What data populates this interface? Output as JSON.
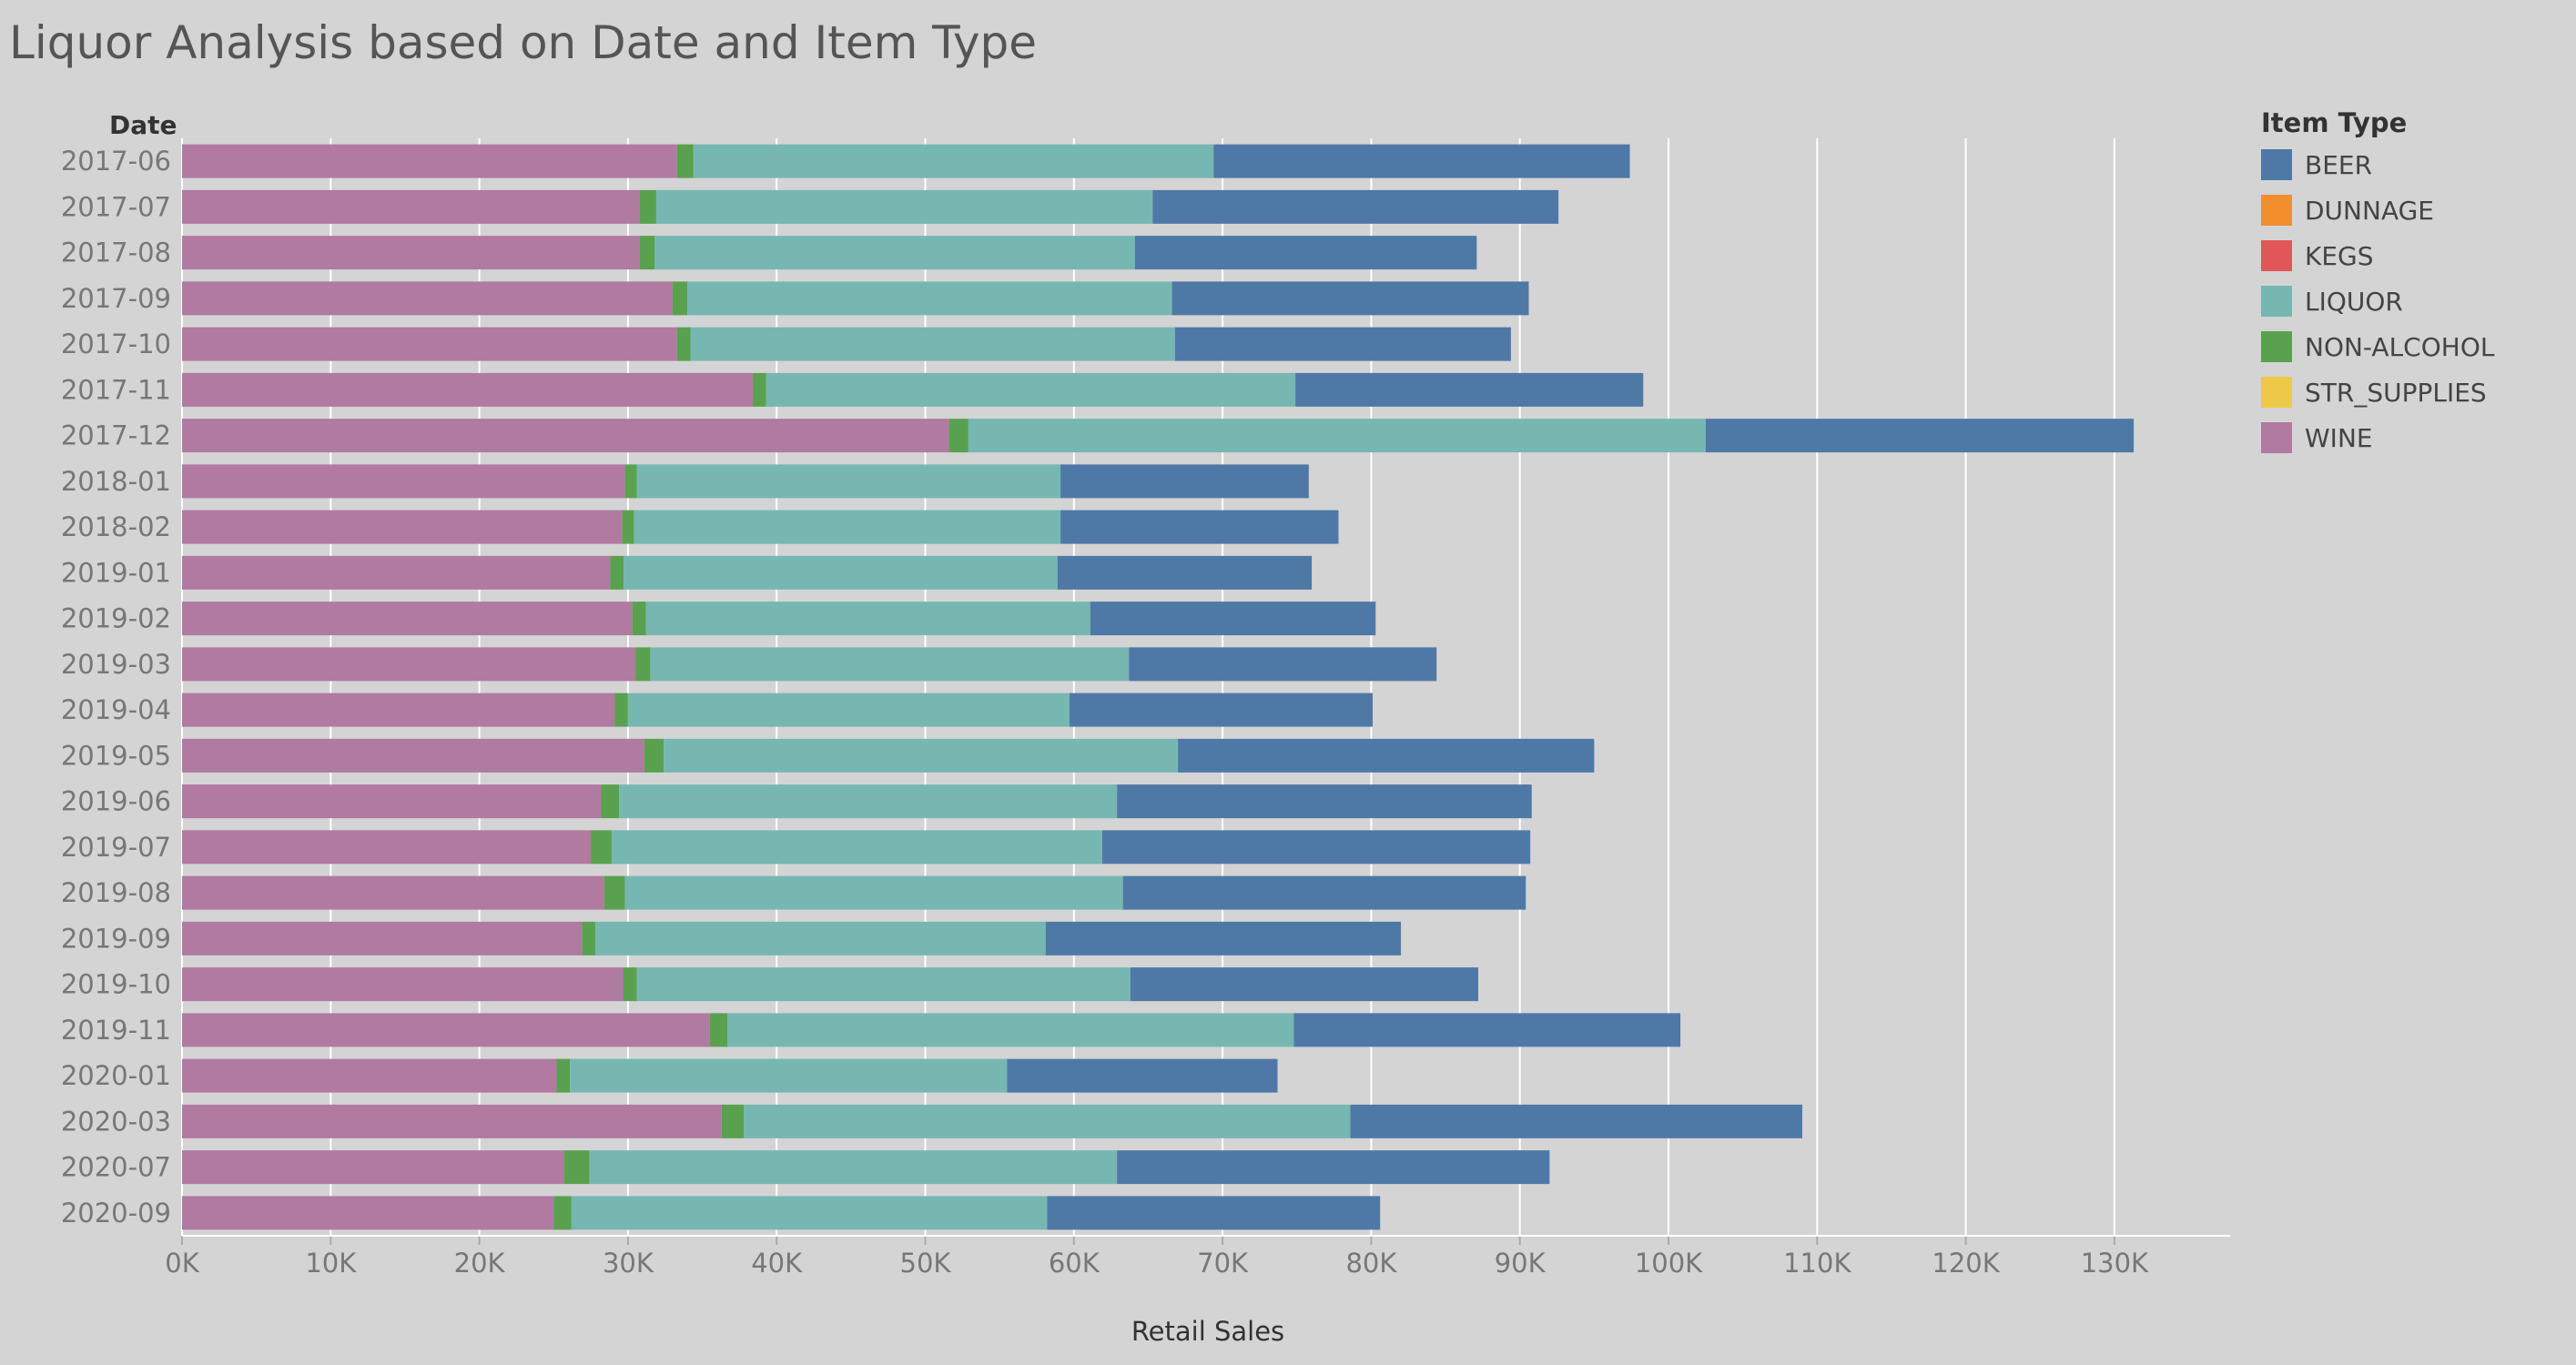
{
  "chart_data": {
    "type": "bar",
    "orientation": "horizontal",
    "stacked": true,
    "title": "Liquor Analysis based on Date and Item Type",
    "ylabel": "Date",
    "xlabel": "Retail Sales",
    "xlim": [
      0,
      138000
    ],
    "x_ticks": [
      0,
      10000,
      20000,
      30000,
      40000,
      50000,
      60000,
      70000,
      80000,
      90000,
      100000,
      110000,
      120000,
      130000
    ],
    "x_tick_labels": [
      "0K",
      "10K",
      "20K",
      "30K",
      "40K",
      "50K",
      "60K",
      "70K",
      "80K",
      "90K",
      "100K",
      "110K",
      "120K",
      "130K"
    ],
    "grid": "vertical",
    "legend": {
      "title": "Item Type",
      "position": "right"
    },
    "categories": [
      "2017-06",
      "2017-07",
      "2017-08",
      "2017-09",
      "2017-10",
      "2017-11",
      "2017-12",
      "2018-01",
      "2018-02",
      "2019-01",
      "2019-02",
      "2019-03",
      "2019-04",
      "2019-05",
      "2019-06",
      "2019-07",
      "2019-08",
      "2019-09",
      "2019-10",
      "2019-11",
      "2020-01",
      "2020-03",
      "2020-07",
      "2020-09"
    ],
    "series": [
      {
        "name": "BEER",
        "color": "#4e79a7",
        "values": [
          28000,
          27300,
          23000,
          24000,
          22600,
          23400,
          28800,
          16700,
          18700,
          17100,
          19200,
          20700,
          20400,
          28000,
          27900,
          28800,
          27100,
          23900,
          23400,
          26000,
          18200,
          30400,
          29100,
          22400
        ]
      },
      {
        "name": "DUNNAGE",
        "color": "#f28e2b",
        "values": [
          0,
          0,
          0,
          0,
          0,
          0,
          0,
          0,
          0,
          0,
          0,
          0,
          0,
          0,
          0,
          0,
          0,
          0,
          0,
          0,
          0,
          0,
          0,
          0
        ]
      },
      {
        "name": "KEGS",
        "color": "#e15759",
        "values": [
          0,
          0,
          0,
          0,
          0,
          0,
          0,
          0,
          0,
          0,
          0,
          0,
          0,
          0,
          0,
          0,
          0,
          0,
          0,
          0,
          0,
          0,
          0,
          0
        ]
      },
      {
        "name": "LIQUOR",
        "color": "#76b7b2",
        "values": [
          35000,
          33400,
          32300,
          32600,
          32600,
          35600,
          49600,
          28500,
          28700,
          29200,
          29900,
          32200,
          29700,
          34600,
          33500,
          33000,
          33500,
          30300,
          33200,
          38100,
          29400,
          40800,
          35500,
          32000
        ]
      },
      {
        "name": "NON-ALCOHOL",
        "color": "#59a14f",
        "values": [
          1100,
          1100,
          1000,
          1000,
          900,
          900,
          1300,
          800,
          800,
          900,
          900,
          1000,
          900,
          1300,
          1200,
          1400,
          1400,
          900,
          900,
          1200,
          900,
          1500,
          1700,
          1200
        ]
      },
      {
        "name": "STR_SUPPLIES",
        "color": "#edc948",
        "values": [
          0,
          0,
          0,
          0,
          0,
          0,
          0,
          0,
          0,
          0,
          0,
          0,
          0,
          0,
          0,
          0,
          0,
          0,
          0,
          0,
          0,
          0,
          0,
          0
        ]
      },
      {
        "name": "WINE",
        "color": "#b07aa1",
        "values": [
          33300,
          30800,
          30800,
          33000,
          33300,
          38400,
          51600,
          29800,
          29600,
          28800,
          30300,
          30500,
          29100,
          31100,
          28200,
          27500,
          28400,
          26900,
          29700,
          35500,
          25200,
          36300,
          25700,
          25000
        ]
      }
    ],
    "stack_order_left_to_right": [
      "WINE",
      "NON-ALCOHOL",
      "LIQUOR",
      "BEER"
    ]
  }
}
